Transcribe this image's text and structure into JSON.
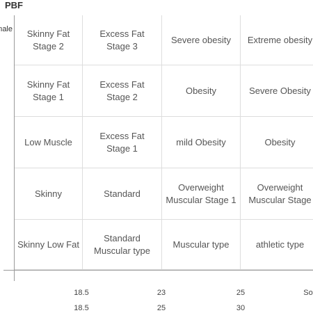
{
  "header": {
    "title": "PBF",
    "row_axis_label": "Female"
  },
  "grid": {
    "rows": [
      [
        "Skinny Fat\nStage 2",
        "Excess Fat\nStage 3",
        "Severe obesity",
        "Extreme obesity"
      ],
      [
        "Skinny Fat\nStage 1",
        "Excess Fat\nStage 2",
        "Obesity",
        "Severe Obesity"
      ],
      [
        "Low Muscle",
        "Excess Fat\nStage 1",
        "mild Obesity",
        "Obesity"
      ],
      [
        "Skinny",
        "Standard",
        "Overweight\nMuscular Stage 1",
        "Overweight\nMuscular Stage"
      ],
      [
        "Skinny Low Fat",
        "Standard\nMuscular type",
        "Muscular type",
        "athletic type"
      ]
    ]
  },
  "x_axis": {
    "rows": [
      [
        "18.5",
        "23",
        "25",
        "So"
      ],
      [
        "18.5",
        "25",
        "30"
      ]
    ]
  }
}
